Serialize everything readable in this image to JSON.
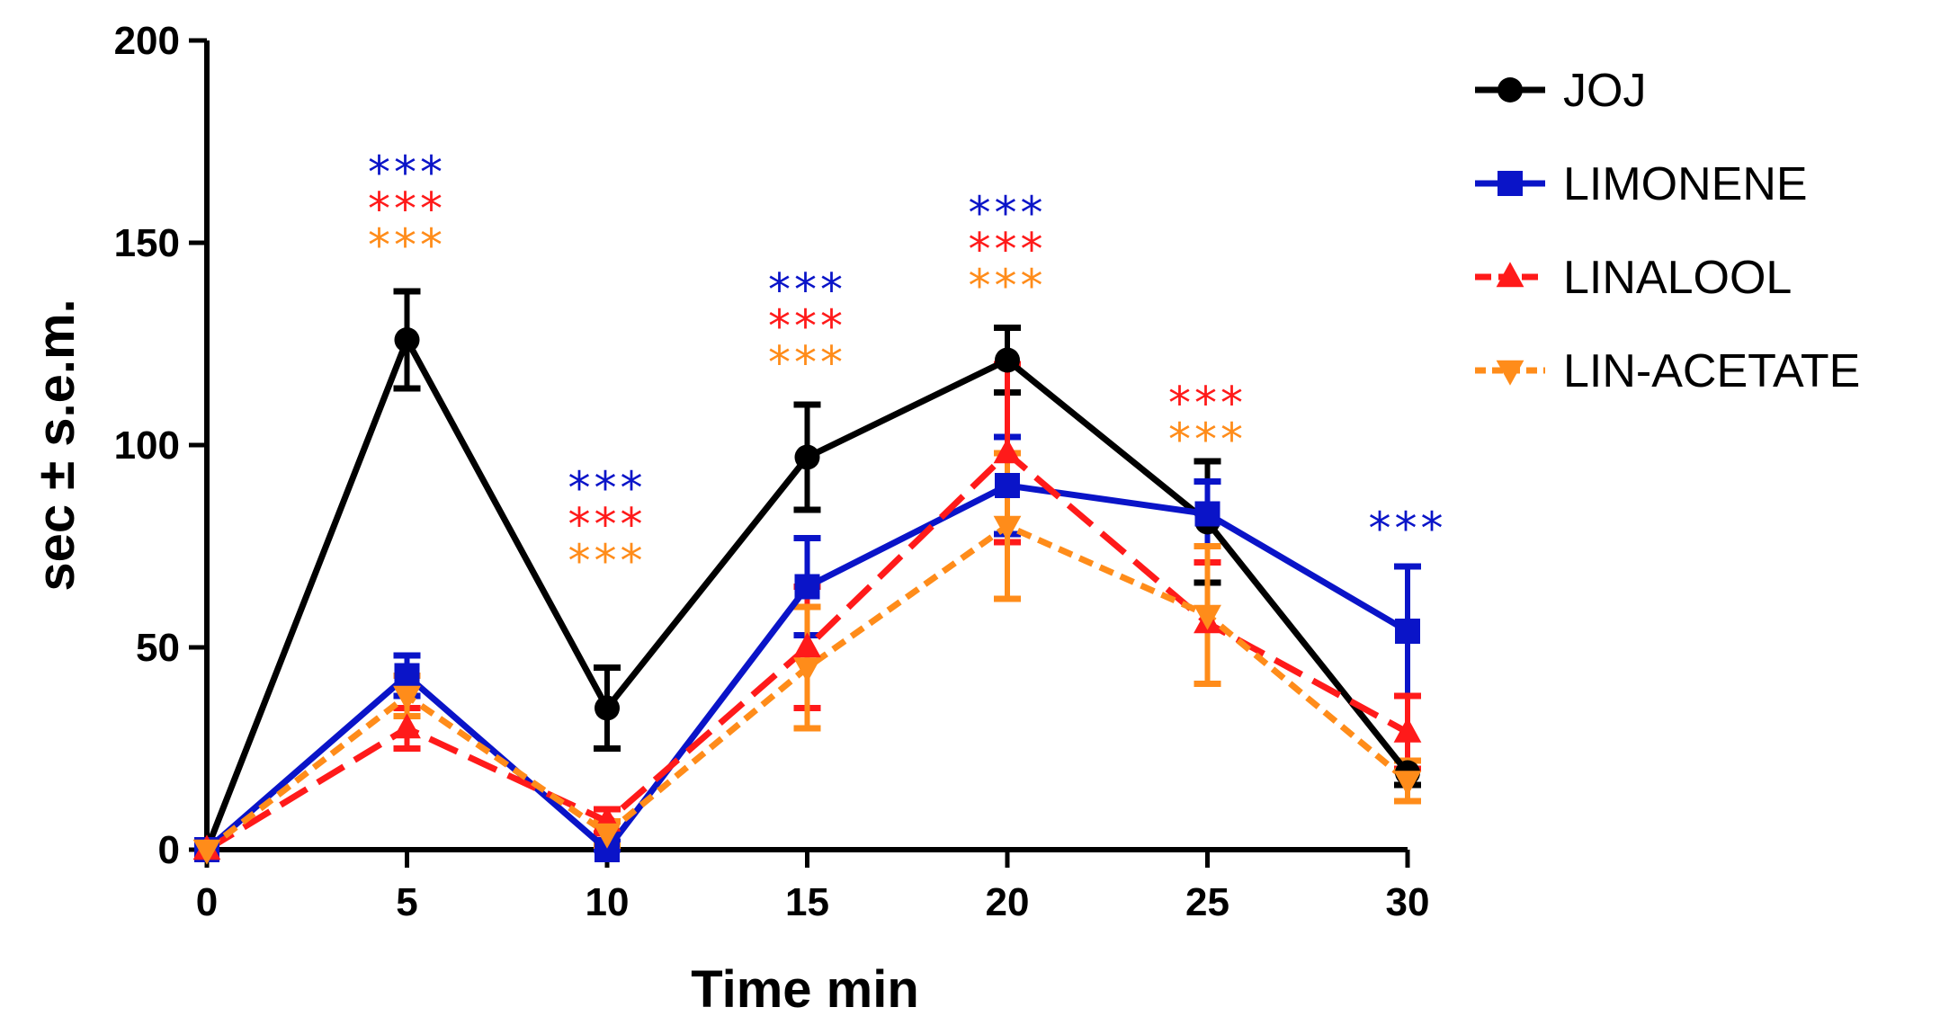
{
  "chart_data": {
    "type": "line",
    "xlabel": "Time min",
    "ylabel": "sec ± s.e.m.",
    "xlim": [
      0,
      30
    ],
    "ylim": [
      0,
      200
    ],
    "x_ticks": [
      "0",
      "5",
      "10",
      "15",
      "20",
      "25",
      "30"
    ],
    "y_ticks": [
      "0",
      "50",
      "100",
      "150",
      "200"
    ],
    "x": [
      0,
      5,
      10,
      15,
      20,
      25,
      30
    ],
    "legend_position": "top-right",
    "grid": false,
    "series": [
      {
        "name": "JOJ",
        "color": "#000000",
        "marker": "circle",
        "line": "solid",
        "values": [
          0,
          126,
          35,
          97,
          121,
          81,
          19
        ],
        "errors": [
          0,
          12,
          10,
          13,
          8,
          15,
          3
        ]
      },
      {
        "name": "LIMONENE",
        "color": "#0a14c8",
        "marker": "square",
        "line": "solid",
        "values": [
          0,
          43,
          0,
          65,
          90,
          83,
          54
        ],
        "errors": [
          0,
          5,
          2,
          12,
          12,
          8,
          16
        ]
      },
      {
        "name": "LINALOOL",
        "color": "#ff1a1a",
        "marker": "triangle-up",
        "line": "dashed",
        "values": [
          0,
          30,
          7,
          50,
          98,
          56,
          29
        ],
        "errors": [
          0,
          5,
          3,
          15,
          22,
          15,
          9
        ]
      },
      {
        "name": "LIN-ACETATE",
        "color": "#ff8c1a",
        "marker": "triangle-down",
        "line": "dotted",
        "values": [
          0,
          38,
          4,
          45,
          80,
          58,
          17
        ],
        "errors": [
          0,
          5,
          3,
          15,
          18,
          17,
          5
        ]
      }
    ],
    "annotations": [
      {
        "x": 5,
        "text": "***",
        "series": "LIMONENE",
        "color": "#0a14c8",
        "value": 168
      },
      {
        "x": 5,
        "text": "***",
        "series": "LINALOOL",
        "color": "#ff1a1a",
        "value": 159
      },
      {
        "x": 5,
        "text": "***",
        "series": "LIN-ACETATE",
        "color": "#ff8c1a",
        "value": 150
      },
      {
        "x": 10,
        "text": "***",
        "series": "LIMONENE",
        "color": "#0a14c8",
        "value": 90
      },
      {
        "x": 10,
        "text": "***",
        "series": "LINALOOL",
        "color": "#ff1a1a",
        "value": 81
      },
      {
        "x": 10,
        "text": "***",
        "series": "LIN-ACETATE",
        "color": "#ff8c1a",
        "value": 72
      },
      {
        "x": 15,
        "text": "***",
        "series": "LIMONENE",
        "color": "#0a14c8",
        "value": 139
      },
      {
        "x": 15,
        "text": "***",
        "series": "LINALOOL",
        "color": "#ff1a1a",
        "value": 130
      },
      {
        "x": 15,
        "text": "***",
        "series": "LIN-ACETATE",
        "color": "#ff8c1a",
        "value": 121
      },
      {
        "x": 20,
        "text": "***",
        "series": "LIMONENE",
        "color": "#0a14c8",
        "value": 158
      },
      {
        "x": 20,
        "text": "***",
        "series": "LINALOOL",
        "color": "#ff1a1a",
        "value": 149
      },
      {
        "x": 20,
        "text": "***",
        "series": "LIN-ACETATE",
        "color": "#ff8c1a",
        "value": 140
      },
      {
        "x": 25,
        "text": "***",
        "series": "LINALOOL",
        "color": "#ff1a1a",
        "value": 111
      },
      {
        "x": 25,
        "text": "***",
        "series": "LIN-ACETATE",
        "color": "#ff8c1a",
        "value": 102
      },
      {
        "x": 30,
        "text": "***",
        "series": "LIMONENE",
        "color": "#0a14c8",
        "value": 80
      }
    ]
  }
}
